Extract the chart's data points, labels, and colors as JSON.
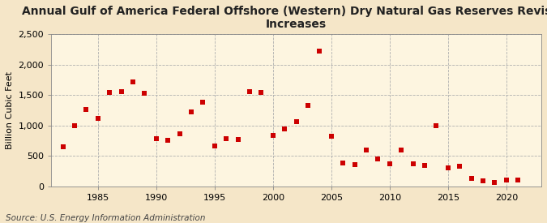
{
  "title": "Annual Gulf of America Federal Offshore (Western) Dry Natural Gas Reserves Revision\nIncreases",
  "ylabel": "Billion Cubic Feet",
  "source": "Source: U.S. Energy Information Administration",
  "background_color": "#f5e6c8",
  "plot_background_color": "#fdf5e0",
  "marker_color": "#cc0000",
  "marker": "s",
  "marker_size": 4,
  "years": [
    1982,
    1983,
    1984,
    1985,
    1986,
    1987,
    1988,
    1989,
    1990,
    1991,
    1992,
    1993,
    1994,
    1995,
    1996,
    1997,
    1998,
    1999,
    2000,
    2001,
    2002,
    2003,
    2004,
    2005,
    2006,
    2007,
    2008,
    2009,
    2010,
    2011,
    2012,
    2013,
    2014,
    2015,
    2016,
    2017,
    2018,
    2019,
    2020,
    2021
  ],
  "values": [
    650,
    1000,
    1260,
    1120,
    1540,
    1560,
    1720,
    1530,
    780,
    760,
    860,
    1220,
    1390,
    660,
    790,
    770,
    1560,
    1540,
    840,
    940,
    1070,
    1330,
    2220,
    830,
    380,
    360,
    600,
    450,
    370,
    600,
    370,
    340,
    1000,
    310,
    330,
    130,
    90,
    70,
    100,
    110
  ],
  "xlim": [
    1981,
    2023
  ],
  "ylim": [
    0,
    2500
  ],
  "yticks": [
    0,
    500,
    1000,
    1500,
    2000,
    2500
  ],
  "ytick_labels": [
    "0",
    "500",
    "1,000",
    "1,500",
    "2,000",
    "2,500"
  ],
  "xticks": [
    1985,
    1990,
    1995,
    2000,
    2005,
    2010,
    2015,
    2020
  ],
  "grid_color": "#b0b0b0",
  "grid_linestyle": "--",
  "title_fontsize": 10,
  "label_fontsize": 8,
  "tick_fontsize": 8,
  "source_fontsize": 7.5
}
